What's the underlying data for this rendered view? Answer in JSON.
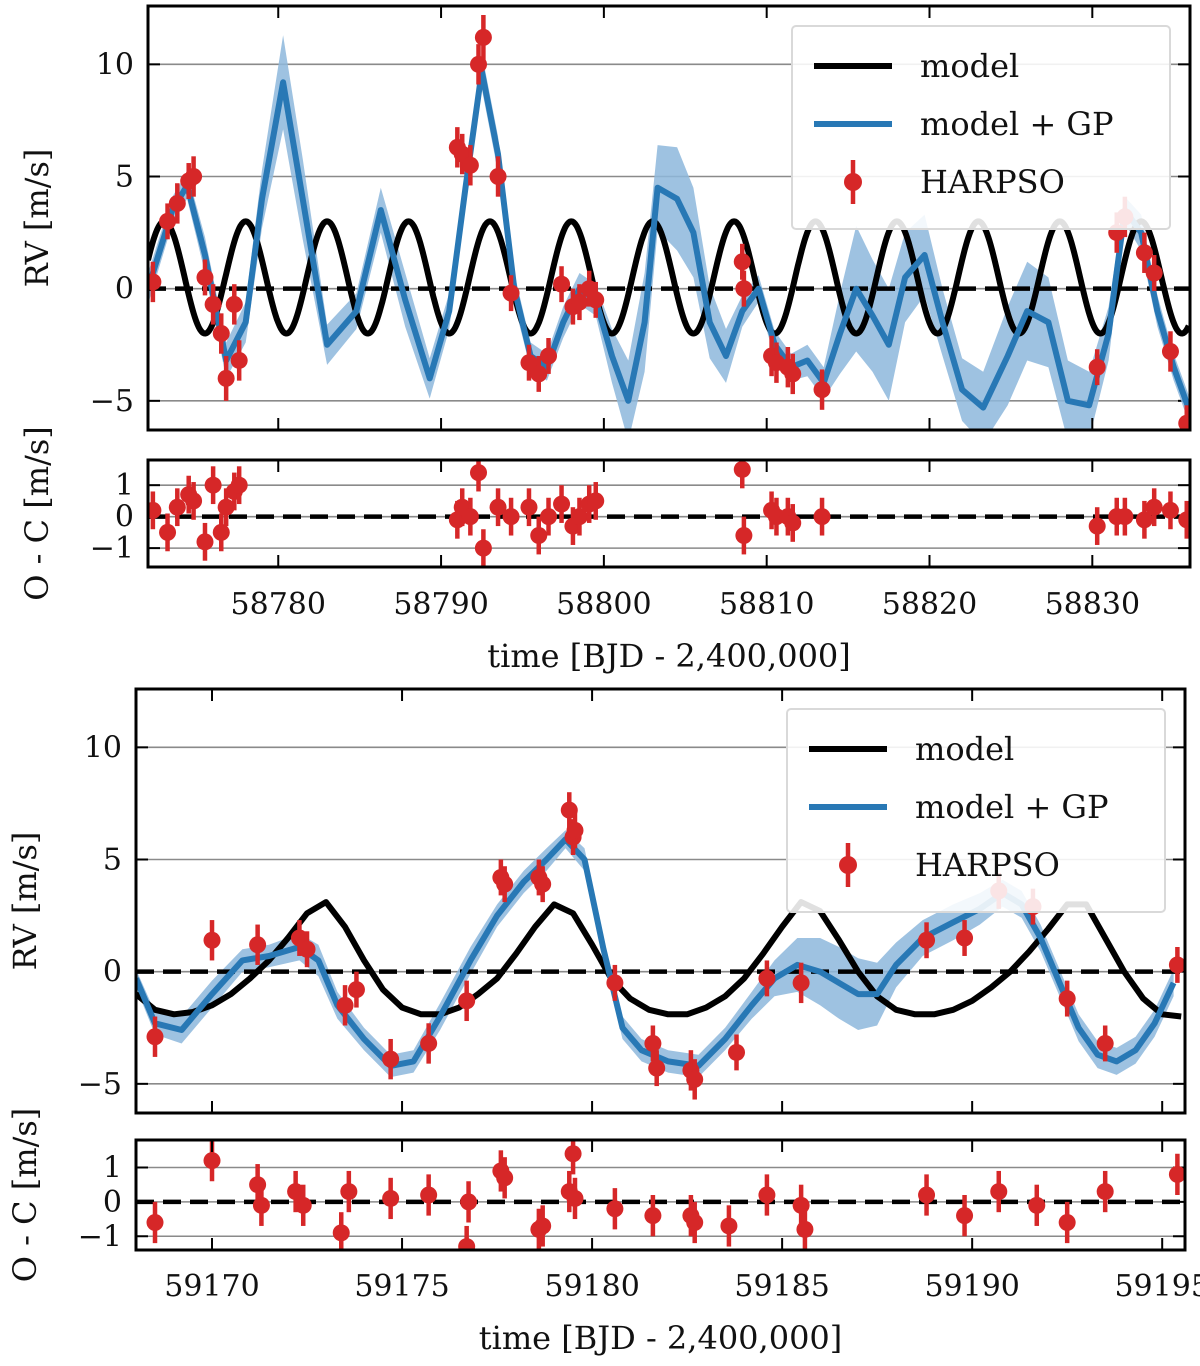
{
  "chart_data": [
    {
      "type": "line",
      "panel": "top",
      "x_unit_label": "time [BJD - 2,400,000]",
      "xlim": [
        58772,
        58836
      ],
      "x_ticks": [
        58780,
        58790,
        58800,
        58810,
        58820,
        58830
      ],
      "x_tick_labels": [
        "58780",
        "58790",
        "58800",
        "58810",
        "58820",
        "58830"
      ],
      "rv": {
        "ylabel": "RV [m/s]",
        "ylim": [
          -6.3,
          12.6
        ],
        "y_ticks": [
          -5,
          0,
          5,
          10
        ],
        "y_tick_labels": [
          "−5",
          "0",
          "5",
          "10"
        ],
        "grid": true,
        "legend": {
          "position": "top-right",
          "entries": [
            {
              "label": "model",
              "color": "#000000",
              "kind": "line"
            },
            {
              "label": "model + GP",
              "color": "#2878b5",
              "kind": "line"
            },
            {
              "label": "HARPSO",
              "color": "#d62728",
              "kind": "errorbar"
            }
          ]
        },
        "model": {
          "name": "model",
          "color": "#000000",
          "period": 5.0,
          "peak_x": 58773.0,
          "amplitude": 2.5,
          "offset": 0.5
        },
        "model_gp": {
          "name": "model + GP",
          "color": "#2878b5",
          "band_color": "#8db7dc",
          "x": [
            58772,
            58773.5,
            58774.4,
            58775.5,
            58776.8,
            58778.0,
            58779.0,
            58780.3,
            58781.5,
            58783.0,
            58784.8,
            58786.3,
            58787.8,
            58789.3,
            58790.5,
            58791.5,
            58792.5,
            58793.5,
            58794.5,
            58795.5,
            58796.5,
            58797.5,
            58798.5,
            58799.5,
            58800.5,
            58801.5,
            58802.5,
            58803.3,
            58804.5,
            58805.5,
            58806.5,
            58807.5,
            58808.5,
            58809.5,
            58810.5,
            58811.5,
            58812.5,
            58813.5,
            58814.5,
            58815.5,
            58816.5,
            58817.5,
            58818.5,
            58819.7,
            58820.8,
            58822.0,
            58823.3,
            58824.8,
            58826.0,
            58827.3,
            58828.5,
            58829.8,
            58831.0,
            58832.0,
            58833.0,
            58834.0,
            58835.0,
            58836.0
          ],
          "y": [
            0,
            3.5,
            4.6,
            1.5,
            -3.2,
            -1.5,
            4.0,
            9.2,
            4.0,
            -2.5,
            -1.0,
            3.5,
            -0.5,
            -4.0,
            -1.0,
            4.5,
            9.7,
            6.0,
            0.0,
            -3.0,
            -3.5,
            -1.5,
            0.0,
            -0.5,
            -3.0,
            -5.0,
            -1.5,
            4.5,
            4.0,
            2.5,
            -1.5,
            -3.0,
            -1.0,
            0.0,
            -2.5,
            -3.5,
            -3.2,
            -4.2,
            -2.0,
            0.0,
            -1.2,
            -2.5,
            0.5,
            1.5,
            -1.5,
            -4.5,
            -5.3,
            -3.0,
            -1.0,
            -1.5,
            -5.0,
            -5.2,
            -2.0,
            3.5,
            2.5,
            -1.0,
            -3.5,
            -5.5
          ],
          "band_halfwidth": [
            0.7,
            0.6,
            0.6,
            0.8,
            0.8,
            0.9,
            1.3,
            2.1,
            1.8,
            0.9,
            0.8,
            1.0,
            1.2,
            0.9,
            0.8,
            0.8,
            0.8,
            0.8,
            0.7,
            0.6,
            0.6,
            0.7,
            0.7,
            0.7,
            1.2,
            1.8,
            2.2,
            1.9,
            2.3,
            2.0,
            1.6,
            1.2,
            0.7,
            0.6,
            0.6,
            0.6,
            0.7,
            0.7,
            1.8,
            2.8,
            2.5,
            2.5,
            2.0,
            1.8,
            1.5,
            1.4,
            1.6,
            2.2,
            2.2,
            2.0,
            1.8,
            1.5,
            1.2,
            0.6,
            0.8,
            0.7,
            0.6,
            0.6
          ]
        },
        "data": {
          "name": "HARPSO",
          "color": "#d62728",
          "x": [
            58772.3,
            58773.2,
            58773.8,
            58774.5,
            58774.8,
            58775.5,
            58776.0,
            58776.5,
            58776.8,
            58777.3,
            58777.6,
            58791.0,
            58791.3,
            58791.8,
            58792.3,
            58792.6,
            58793.5,
            58794.3,
            58795.4,
            58796.0,
            58796.6,
            58797.4,
            58798.1,
            58798.5,
            58799.1,
            58799.5,
            58808.5,
            58808.6,
            58810.3,
            58810.6,
            58811.3,
            58811.6,
            58813.4,
            58830.3,
            58831.5,
            58832.0,
            58833.2,
            58833.8,
            58834.8,
            58835.8
          ],
          "y": [
            0.3,
            3.0,
            3.8,
            4.8,
            5.0,
            0.5,
            -0.7,
            -2.0,
            -4.0,
            -0.7,
            -3.2,
            6.3,
            6.0,
            5.5,
            10.0,
            11.2,
            5.0,
            -0.2,
            -3.3,
            -3.8,
            -3.0,
            0.2,
            -0.8,
            -0.6,
            0.0,
            -0.5,
            1.2,
            0.0,
            -3.0,
            -3.3,
            -3.5,
            -3.8,
            -4.5,
            -3.5,
            2.5,
            3.2,
            1.6,
            0.7,
            -2.8,
            -6.0
          ],
          "err": [
            0.9,
            0.8,
            0.9,
            0.8,
            0.9,
            0.8,
            0.9,
            0.9,
            1.0,
            0.9,
            0.9,
            0.9,
            0.9,
            0.9,
            0.9,
            1.0,
            0.9,
            0.8,
            0.8,
            0.8,
            0.8,
            0.8,
            0.8,
            0.8,
            0.8,
            0.8,
            0.8,
            0.8,
            0.9,
            0.9,
            0.9,
            0.9,
            0.9,
            0.8,
            0.9,
            0.9,
            0.9,
            0.8,
            0.9,
            0.8
          ]
        }
      },
      "residuals": {
        "ylabel": "O - C [m/s]",
        "ylim": [
          -1.6,
          1.8
        ],
        "y_ticks": [
          -1,
          0,
          1
        ],
        "y_tick_labels": [
          "−1",
          "0",
          "1"
        ],
        "grid": true,
        "x": [
          58772.3,
          58773.2,
          58773.8,
          58774.5,
          58774.8,
          58775.5,
          58776.0,
          58776.5,
          58776.8,
          58777.3,
          58777.6,
          58791.0,
          58791.3,
          58791.8,
          58792.3,
          58792.6,
          58793.5,
          58794.3,
          58795.4,
          58796.0,
          58796.6,
          58797.4,
          58798.1,
          58798.5,
          58799.1,
          58799.5,
          58808.5,
          58808.6,
          58810.3,
          58810.6,
          58811.3,
          58811.6,
          58813.4,
          58830.3,
          58831.5,
          58832.0,
          58833.2,
          58833.8,
          58834.8,
          58835.8
        ],
        "y": [
          0.2,
          -0.5,
          0.3,
          0.7,
          0.5,
          -0.8,
          1.0,
          -0.5,
          0.3,
          0.8,
          1.0,
          -0.1,
          0.3,
          0.0,
          1.4,
          -1.0,
          0.3,
          0.0,
          0.3,
          -0.6,
          0.0,
          0.4,
          -0.3,
          0.0,
          0.4,
          0.5,
          1.5,
          -0.6,
          0.2,
          0.0,
          0.0,
          -0.2,
          0.0,
          -0.3,
          0.0,
          0.0,
          -0.1,
          0.3,
          0.2,
          -0.1
        ],
        "err": [
          0.6,
          0.6,
          0.6,
          0.6,
          0.6,
          0.6,
          0.6,
          0.6,
          0.6,
          0.6,
          0.6,
          0.6,
          0.6,
          0.6,
          0.6,
          0.6,
          0.6,
          0.6,
          0.6,
          0.6,
          0.6,
          0.6,
          0.6,
          0.6,
          0.6,
          0.6,
          0.6,
          0.6,
          0.6,
          0.6,
          0.6,
          0.6,
          0.6,
          0.6,
          0.6,
          0.6,
          0.6,
          0.6,
          0.6,
          0.6
        ]
      }
    },
    {
      "type": "line",
      "panel": "bottom",
      "x_unit_label": "time [BJD - 2,400,000]",
      "xlim": [
        59168.0,
        59195.6
      ],
      "x_ticks": [
        59170,
        59175,
        59180,
        59185,
        59190,
        59195
      ],
      "x_tick_labels": [
        "59170",
        "59175",
        "59180",
        "59185",
        "59190",
        "59195"
      ],
      "rv": {
        "ylabel": "RV [m/s]",
        "ylim": [
          -6.3,
          12.6
        ],
        "y_ticks": [
          -5,
          0,
          5,
          10
        ],
        "y_tick_labels": [
          "−5",
          "0",
          "5",
          "10"
        ],
        "grid": true,
        "legend": {
          "position": "top-right",
          "entries": [
            {
              "label": "model",
              "color": "#000000",
              "kind": "line"
            },
            {
              "label": "model + GP",
              "color": "#2878b5",
              "kind": "line"
            },
            {
              "label": "HARPSO",
              "color": "#d62728",
              "kind": "errorbar"
            }
          ]
        },
        "model": {
          "name": "model",
          "color": "#000000",
          "x": [
            59168.0,
            59168.5,
            59169.0,
            59169.5,
            59170.0,
            59170.5,
            59171.0,
            59171.5,
            59172.0,
            59172.5,
            59173.0,
            59173.5,
            59174.0,
            59174.5,
            59175.0,
            59175.5,
            59176.0,
            59176.5,
            59177.0,
            59177.5,
            59178.0,
            59178.5,
            59179.0,
            59179.5,
            59180.0,
            59180.5,
            59181.0,
            59181.5,
            59182.0,
            59182.5,
            59183.0,
            59183.5,
            59184.0,
            59184.5,
            59185.0,
            59185.5,
            59186.0,
            59186.5,
            59187.0,
            59187.5,
            59188.0,
            59188.5,
            59189.0,
            59189.5,
            59190.0,
            59190.5,
            59191.0,
            59191.5,
            59192.0,
            59192.5,
            59193.0,
            59193.5,
            59194.0,
            59194.5,
            59195.0,
            59195.5
          ],
          "y": [
            -1.0,
            -1.7,
            -1.9,
            -1.8,
            -1.5,
            -1.0,
            -0.3,
            0.5,
            1.5,
            2.6,
            3.1,
            2.0,
            0.5,
            -0.8,
            -1.6,
            -1.9,
            -1.9,
            -1.6,
            -1.0,
            -0.3,
            0.8,
            2.0,
            3.0,
            2.6,
            1.2,
            -0.3,
            -1.2,
            -1.7,
            -1.9,
            -1.9,
            -1.6,
            -1.1,
            -0.3,
            0.8,
            2.0,
            3.1,
            2.7,
            1.4,
            0.0,
            -1.1,
            -1.7,
            -1.9,
            -1.9,
            -1.7,
            -1.3,
            -0.7,
            0.0,
            0.9,
            1.9,
            3.0,
            3.0,
            1.5,
            0.0,
            -1.2,
            -1.9,
            -2.0
          ]
        },
        "model_gp": {
          "name": "model + GP",
          "color": "#2878b5",
          "band_color": "#8db7dc",
          "x": [
            59168.0,
            59168.5,
            59169.2,
            59170.0,
            59170.8,
            59171.5,
            59172.3,
            59172.8,
            59173.3,
            59174.0,
            59174.7,
            59175.3,
            59176.0,
            59176.8,
            59177.5,
            59178.2,
            59178.8,
            59179.3,
            59179.8,
            59180.3,
            59180.8,
            59181.3,
            59182.0,
            59182.8,
            59183.5,
            59184.2,
            59184.8,
            59185.4,
            59186.0,
            59186.5,
            59187.0,
            59187.5,
            59188.0,
            59188.7,
            59189.5,
            59190.2,
            59190.8,
            59191.3,
            59191.8,
            59192.3,
            59192.8,
            59193.3,
            59193.8,
            59194.3,
            59194.8,
            59195.3
          ],
          "y": [
            -0.3,
            -2.3,
            -2.6,
            -1.0,
            0.5,
            0.7,
            1.1,
            0.5,
            -1.5,
            -3.0,
            -4.2,
            -4.0,
            -2.0,
            0.5,
            2.5,
            4.0,
            5.0,
            5.9,
            5.0,
            1.0,
            -2.5,
            -3.5,
            -4.0,
            -4.2,
            -3.0,
            -1.5,
            -0.3,
            0.3,
            0.0,
            -0.5,
            -1.0,
            -1.0,
            0.3,
            1.5,
            2.2,
            2.8,
            3.5,
            3.0,
            1.5,
            -0.5,
            -2.5,
            -3.7,
            -4.0,
            -3.5,
            -2.3,
            -0.5
          ],
          "band_halfwidth": [
            0.4,
            0.5,
            0.6,
            0.6,
            0.5,
            0.5,
            0.6,
            0.7,
            0.6,
            0.5,
            0.5,
            0.5,
            0.6,
            0.6,
            0.5,
            0.5,
            0.5,
            0.4,
            0.5,
            0.5,
            0.5,
            0.5,
            0.5,
            0.5,
            0.5,
            0.6,
            0.8,
            1.2,
            1.5,
            1.6,
            1.6,
            1.4,
            1.0,
            0.8,
            0.8,
            0.7,
            0.6,
            0.6,
            0.6,
            0.6,
            0.6,
            0.6,
            0.6,
            0.6,
            0.6,
            0.6
          ]
        },
        "data": {
          "name": "HARPSO",
          "color": "#d62728",
          "x": [
            59168.5,
            59170.0,
            59171.2,
            59172.3,
            59172.5,
            59173.5,
            59173.8,
            59174.7,
            59175.7,
            59176.7,
            59177.6,
            59177.7,
            59178.6,
            59178.7,
            59179.4,
            59179.5,
            59179.55,
            59180.6,
            59181.6,
            59181.7,
            59182.6,
            59182.7,
            59183.8,
            59184.6,
            59185.5,
            59188.8,
            59189.8,
            59190.7,
            59191.6,
            59192.5,
            59193.5,
            59195.4
          ],
          "y": [
            -2.9,
            1.4,
            1.2,
            1.5,
            1.0,
            -1.5,
            -0.8,
            -3.9,
            -3.2,
            -1.3,
            4.2,
            3.9,
            4.2,
            3.9,
            7.2,
            6.0,
            6.3,
            -0.5,
            -3.2,
            -4.3,
            -4.4,
            -4.8,
            -3.6,
            -0.3,
            -0.5,
            1.4,
            1.5,
            3.6,
            2.9,
            -1.2,
            -3.2,
            0.3
          ],
          "err": [
            0.9,
            0.9,
            0.9,
            0.8,
            0.8,
            0.9,
            0.8,
            0.9,
            0.9,
            0.9,
            0.8,
            0.8,
            0.8,
            0.8,
            0.8,
            0.8,
            0.8,
            0.8,
            0.8,
            0.8,
            0.9,
            0.9,
            0.8,
            0.8,
            0.9,
            0.8,
            0.8,
            0.8,
            0.8,
            0.8,
            0.8,
            0.8
          ]
        }
      },
      "residuals": {
        "ylabel": "O - C [m/s]",
        "ylim": [
          -1.4,
          1.8
        ],
        "y_ticks": [
          -1,
          0,
          1
        ],
        "y_tick_labels": [
          "−1",
          "0",
          "1"
        ],
        "grid": true,
        "x": [
          59168.5,
          59170.0,
          59171.2,
          59171.3,
          59172.2,
          59172.4,
          59173.4,
          59173.6,
          59174.7,
          59175.7,
          59176.7,
          59176.75,
          59177.6,
          59177.7,
          59178.6,
          59178.7,
          59179.4,
          59179.5,
          59179.55,
          59180.6,
          59181.6,
          59182.6,
          59182.7,
          59183.6,
          59184.6,
          59185.5,
          59185.6,
          59188.8,
          59189.8,
          59190.7,
          59191.7,
          59192.5,
          59193.5,
          59195.4
        ],
        "y": [
          -0.6,
          1.2,
          0.5,
          -0.1,
          0.3,
          -0.1,
          -0.9,
          0.3,
          0.1,
          0.2,
          -1.3,
          0.0,
          0.9,
          0.7,
          -0.8,
          -0.7,
          0.3,
          1.4,
          0.1,
          -0.2,
          -0.4,
          -0.4,
          -0.6,
          -0.7,
          0.2,
          -0.1,
          -0.8,
          0.2,
          -0.4,
          0.3,
          -0.1,
          -0.6,
          0.3,
          0.8
        ],
        "err": [
          0.6,
          0.6,
          0.6,
          0.6,
          0.6,
          0.6,
          0.6,
          0.6,
          0.6,
          0.6,
          0.6,
          0.6,
          0.6,
          0.6,
          0.6,
          0.6,
          0.6,
          0.6,
          0.6,
          0.6,
          0.6,
          0.6,
          0.6,
          0.6,
          0.6,
          0.6,
          0.6,
          0.6,
          0.6,
          0.6,
          0.6,
          0.6,
          0.6,
          0.6
        ]
      }
    }
  ]
}
